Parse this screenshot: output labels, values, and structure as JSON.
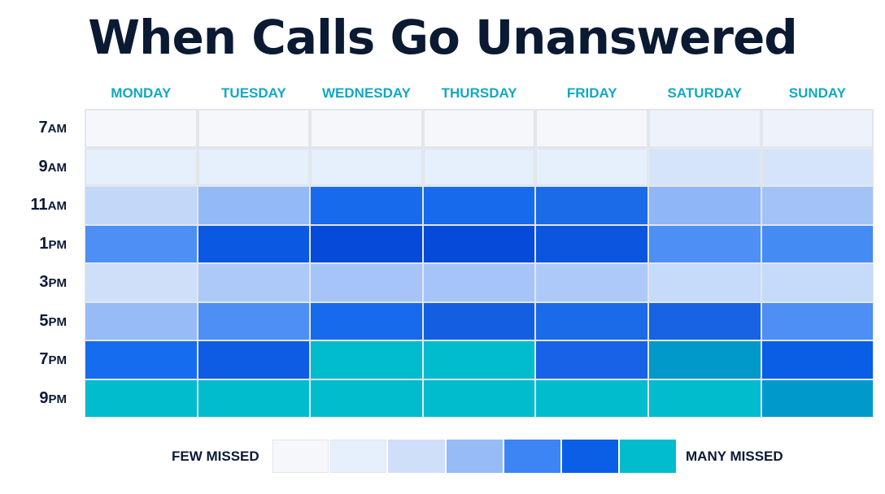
{
  "chart_data": {
    "type": "heatmap",
    "title": "When Calls Go Unanswered",
    "columns": [
      "MONDAY",
      "TUESDAY",
      "WEDNESDAY",
      "THURSDAY",
      "FRIDAY",
      "SATURDAY",
      "SUNDAY"
    ],
    "rows": [
      {
        "hour": "7",
        "suffix": "AM"
      },
      {
        "hour": "9",
        "suffix": "AM"
      },
      {
        "hour": "11",
        "suffix": "AM"
      },
      {
        "hour": "1",
        "suffix": "PM"
      },
      {
        "hour": "3",
        "suffix": "PM"
      },
      {
        "hour": "5",
        "suffix": "PM"
      },
      {
        "hour": "7",
        "suffix": "PM"
      },
      {
        "hour": "9",
        "suffix": "PM"
      }
    ],
    "values": [
      [
        0,
        0,
        0,
        0,
        0,
        1,
        1
      ],
      [
        1,
        1,
        1,
        1,
        1,
        2,
        2
      ],
      [
        2,
        3,
        5,
        5,
        5,
        3,
        3
      ],
      [
        4,
        5,
        5,
        5,
        5,
        4,
        4
      ],
      [
        2,
        3,
        3,
        3,
        3,
        2,
        2
      ],
      [
        3,
        4,
        5,
        5,
        5,
        5,
        4
      ],
      [
        5,
        5,
        6,
        6,
        5,
        6,
        5
      ],
      [
        6,
        6,
        6,
        6,
        6,
        6,
        6
      ]
    ],
    "cell_colors": [
      [
        "#f6f7fb",
        "#f6f7fb",
        "#f6f7fb",
        "#f6f7fb",
        "#f6f7fb",
        "#eef2fb",
        "#eef2fb"
      ],
      [
        "#e6effc",
        "#e6effc",
        "#e6effc",
        "#e6effc",
        "#e6effc",
        "#d6e4fb",
        "#d6e4fb"
      ],
      [
        "#c3d7f9",
        "#93baf7",
        "#176aec",
        "#176aec",
        "#1b6ae8",
        "#8fb6f6",
        "#a3c3f7"
      ],
      [
        "#4d8ff4",
        "#0b58e2",
        "#064ad9",
        "#064ad9",
        "#0b55df",
        "#4d8ff4",
        "#448cf4"
      ],
      [
        "#cfdffa",
        "#adc9f8",
        "#a6c4f8",
        "#a6c4f8",
        "#adc9f8",
        "#c6daf9",
        "#c6daf9"
      ],
      [
        "#96bbf6",
        "#4d8ff4",
        "#176aec",
        "#145fe1",
        "#1b6ae8",
        "#1763e3",
        "#4d8ff4"
      ],
      [
        "#156cee",
        "#0f5ce4",
        "#00bccd",
        "#00bccd",
        "#1762e6",
        "#0099c9",
        "#0a5de5"
      ],
      [
        "#00bccd",
        "#00bccd",
        "#00bccd",
        "#00bccd",
        "#00bccd",
        "#00bccd",
        "#0099cc"
      ]
    ],
    "legend": {
      "low_label": "FEW MISSED",
      "high_label": "MANY MISSED",
      "colors": [
        "#f6f7fb",
        "#e6effc",
        "#cfdffa",
        "#96bbf6",
        "#3d85f5",
        "#0b5fe6",
        "#00bccd"
      ]
    }
  }
}
